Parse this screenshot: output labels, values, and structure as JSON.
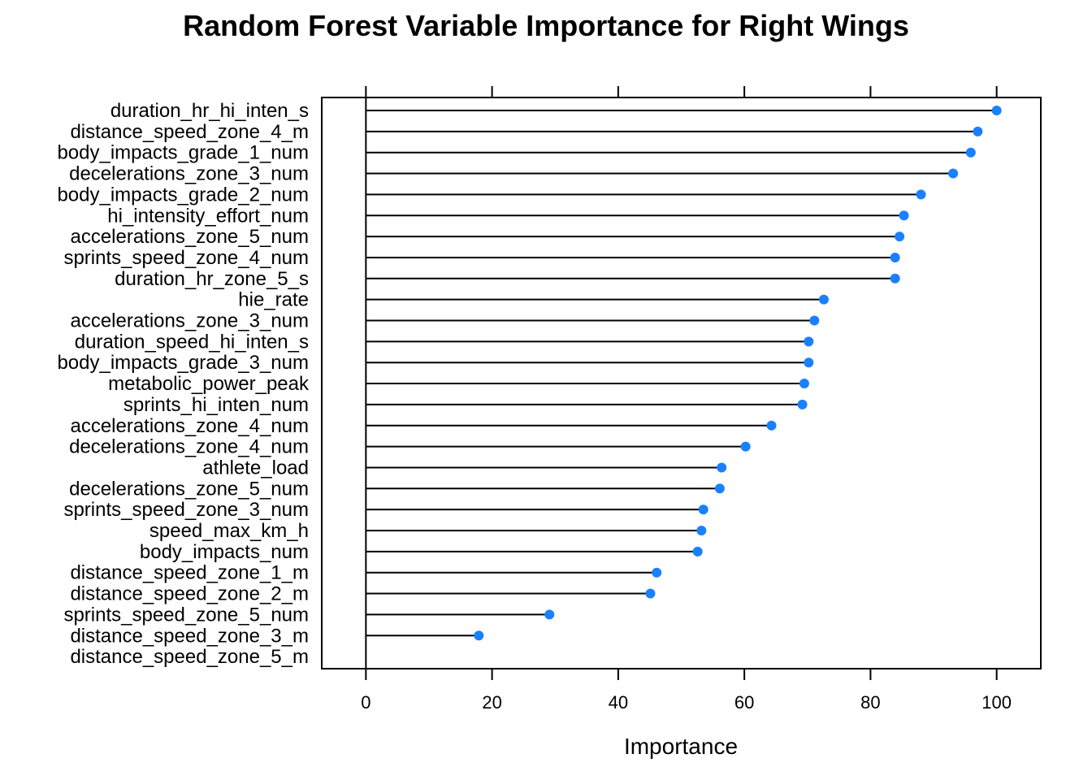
{
  "chart_data": {
    "type": "dotplot",
    "title": "Random Forest Variable Importance for Right Wings",
    "xlabel": "Importance",
    "ylabel": "",
    "xlim": [
      -7,
      107
    ],
    "xticks": [
      0,
      20,
      40,
      60,
      80,
      100
    ],
    "grid": false,
    "legend": "none",
    "colors": {
      "point": "#1a80ff",
      "line": "#000000",
      "frame": "#000000"
    },
    "categories": [
      "duration_hr_hi_inten_s",
      "distance_speed_zone_4_m",
      "body_impacts_grade_1_num",
      "decelerations_zone_3_num",
      "body_impacts_grade_2_num",
      "hi_intensity_effort_num",
      "accelerations_zone_5_num",
      "sprints_speed_zone_4_num",
      "duration_hr_zone_5_s",
      "hie_rate",
      "accelerations_zone_3_num",
      "duration_speed_hi_inten_s",
      "body_impacts_grade_3_num",
      "metabolic_power_peak",
      "sprints_hi_inten_num",
      "accelerations_zone_4_num",
      "decelerations_zone_4_num",
      "athlete_load",
      "decelerations_zone_5_num",
      "sprints_speed_zone_3_num",
      "speed_max_km_h",
      "body_impacts_num",
      "distance_speed_zone_1_m",
      "distance_speed_zone_2_m",
      "sprints_speed_zone_5_num",
      "distance_speed_zone_3_m",
      "distance_speed_zone_5_m"
    ],
    "values": [
      100,
      97.0,
      95.9,
      93.1,
      88.0,
      85.3,
      84.6,
      83.9,
      83.9,
      72.6,
      71.1,
      70.2,
      70.2,
      69.5,
      69.2,
      64.3,
      60.2,
      56.4,
      56.1,
      53.5,
      53.2,
      52.6,
      46.1,
      45.1,
      29.1,
      17.9,
      0
    ]
  }
}
